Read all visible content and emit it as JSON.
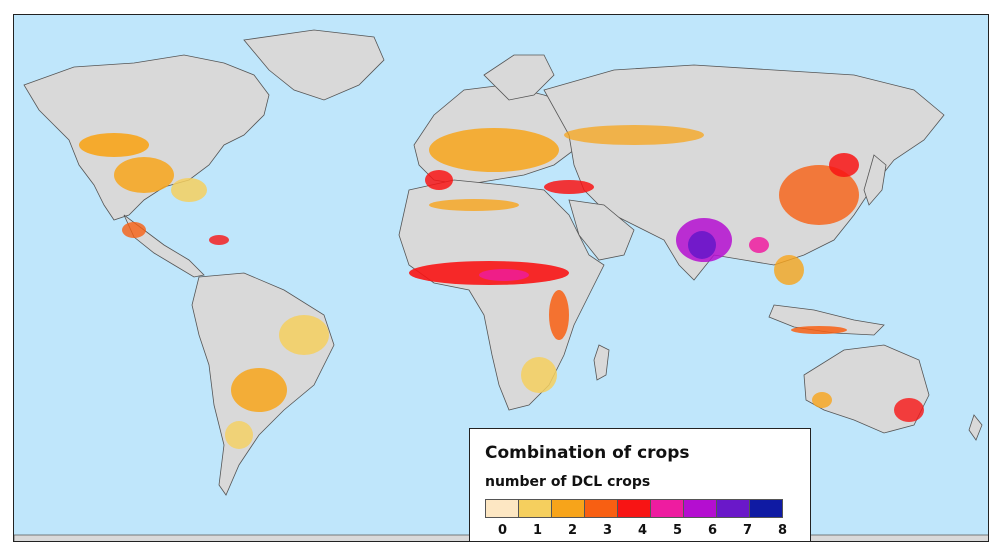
{
  "legend": {
    "title": "Combination of crops",
    "subtitle": "number of DCL crops",
    "classes": [
      {
        "label": "0",
        "color": "#fde7c3"
      },
      {
        "label": "1",
        "color": "#f5cf5e"
      },
      {
        "label": "2",
        "color": "#f7a41a"
      },
      {
        "label": "3",
        "color": "#f85f12"
      },
      {
        "label": "4",
        "color": "#f81414"
      },
      {
        "label": "5",
        "color": "#ee1ca0"
      },
      {
        "label": "6",
        "color": "#b40ed0"
      },
      {
        "label": "7",
        "color": "#6a18c9"
      },
      {
        "label": "8",
        "color": "#0f1aa3"
      }
    ]
  },
  "map": {
    "ocean_color": "#bfe6fb",
    "land_color": "#d9d9d9",
    "border_color": "#555555"
  }
}
